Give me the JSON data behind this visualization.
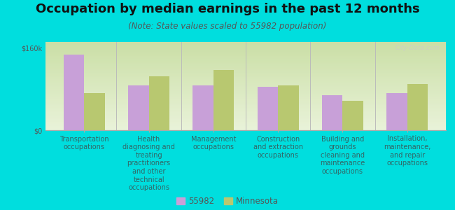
{
  "title": "Occupation by median earnings in the past 12 months",
  "subtitle": "(Note: State values scaled to 55982 population)",
  "background_color": "#00dede",
  "categories": [
    "Transportation\noccupations",
    "Health\ndiagnosing and\ntreating\npractitioners\nand other\ntechnical\noccupations",
    "Management\noccupations",
    "Construction\nand extraction\noccupations",
    "Building and\ngrounds\ncleaning and\nmaintenance\noccupations",
    "Installation,\nmaintenance,\nand repair\noccupations"
  ],
  "values_55982": [
    148000,
    88000,
    88000,
    85000,
    68000,
    72000
  ],
  "values_minnesota": [
    72000,
    105000,
    118000,
    87000,
    58000,
    90000
  ],
  "color_55982": "#c8a0d8",
  "color_minnesota": "#b8c870",
  "ylim": [
    0,
    172000
  ],
  "ytick_labels": [
    "$0",
    "$160k"
  ],
  "ytick_vals": [
    0,
    160000
  ],
  "legend_label_55982": "55982",
  "legend_label_minnesota": "Minnesota",
  "bar_width": 0.32,
  "title_fontsize": 13,
  "subtitle_fontsize": 8.5,
  "tick_label_fontsize": 7,
  "legend_fontsize": 8.5,
  "plot_bg_color": "#e8f0d0",
  "plot_bg_top": "#d8ecc0",
  "watermark": "City-Data.com"
}
